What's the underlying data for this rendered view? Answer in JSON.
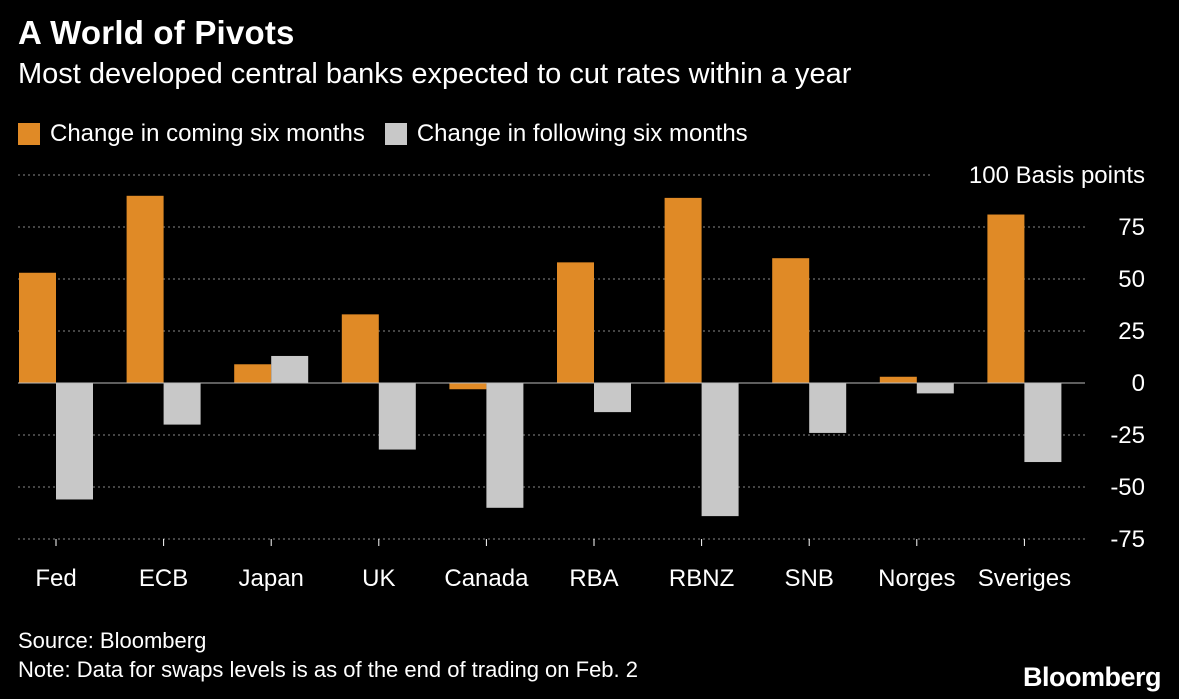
{
  "title": "A World of Pivots",
  "subtitle": "Most developed central banks expected to cut rates within a year",
  "legend": [
    {
      "label": "Change in coming six months",
      "color": "#e08a26"
    },
    {
      "label": "Change in following six months",
      "color": "#c8c8c8"
    }
  ],
  "source": "Source: Bloomberg",
  "note": "Note: Data for swaps levels is as of the end of trading on Feb. 2",
  "brand": "Bloomberg",
  "chart_data": {
    "type": "bar",
    "categories": [
      "Fed",
      "ECB",
      "Japan",
      "UK",
      "Canada",
      "RBA",
      "RBNZ",
      "SNB",
      "Norges",
      "Sveriges"
    ],
    "series": [
      {
        "name": "Change in coming six months",
        "color": "#e08a26",
        "values": [
          53,
          90,
          9,
          33,
          -3,
          58,
          89,
          60,
          3,
          81
        ]
      },
      {
        "name": "Change in following six months",
        "color": "#c8c8c8",
        "values": [
          -56,
          -20,
          13,
          -32,
          -60,
          -14,
          -64,
          -24,
          -5,
          -38
        ]
      }
    ],
    "yticks": [
      100,
      75,
      50,
      25,
      0,
      -25,
      -50,
      -75
    ],
    "ytick_labels": [
      "100 Basis points",
      "75",
      "50",
      "25",
      "0",
      "-25",
      "-50",
      "-75"
    ],
    "ylim": [
      -75,
      100
    ],
    "grid": true,
    "legend_position": "top-left"
  }
}
